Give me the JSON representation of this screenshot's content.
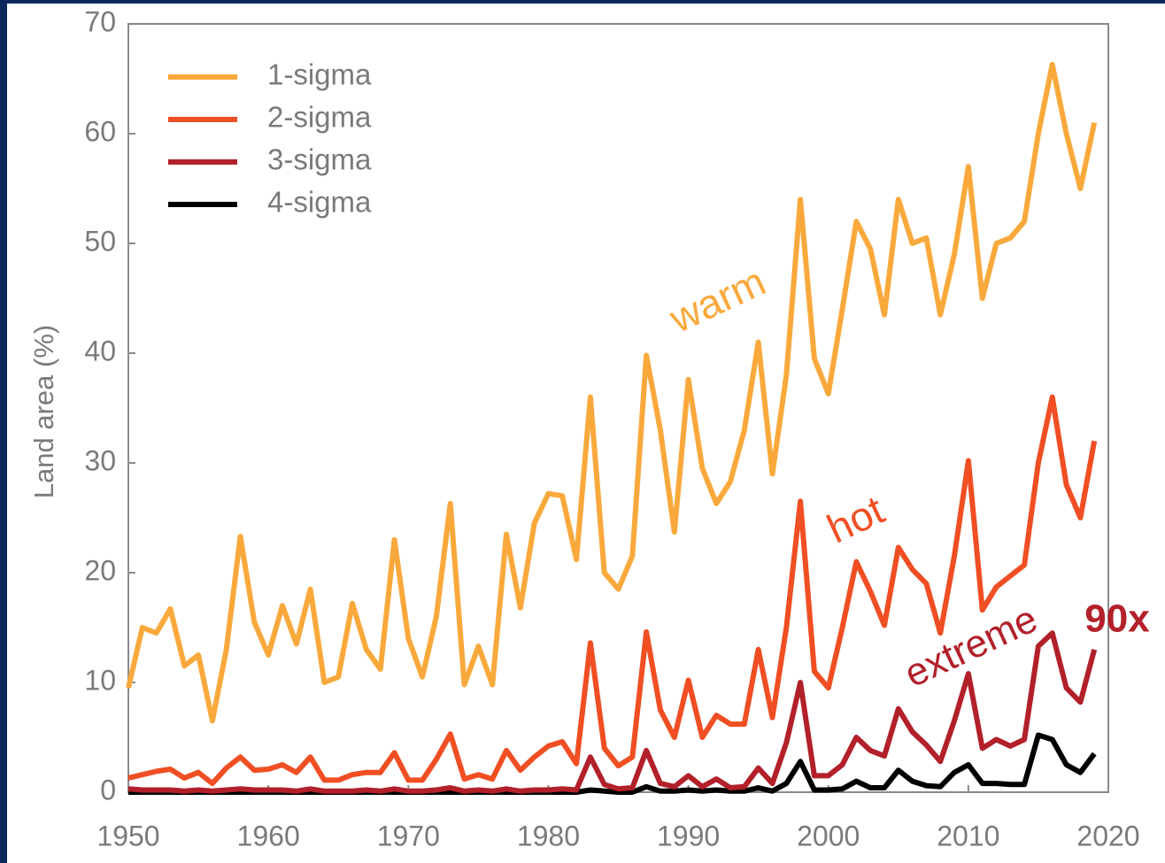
{
  "chart_data": {
    "type": "line",
    "y_label": "Land area (%)",
    "x": [
      1950,
      1951,
      1952,
      1953,
      1954,
      1955,
      1956,
      1957,
      1958,
      1959,
      1960,
      1961,
      1962,
      1963,
      1964,
      1965,
      1966,
      1967,
      1968,
      1969,
      1970,
      1971,
      1972,
      1973,
      1974,
      1975,
      1976,
      1977,
      1978,
      1979,
      1980,
      1981,
      1982,
      1983,
      1984,
      1985,
      1986,
      1987,
      1988,
      1989,
      1990,
      1991,
      1992,
      1993,
      1994,
      1995,
      1996,
      1997,
      1998,
      1999,
      2000,
      2001,
      2002,
      2003,
      2004,
      2005,
      2006,
      2007,
      2008,
      2009,
      2010,
      2011,
      2012,
      2013,
      2014,
      2015,
      2016,
      2017,
      2018,
      2019
    ],
    "series": [
      {
        "name": "1-sigma",
        "color": "#f9a93c",
        "values": [
          9.5,
          15,
          14.5,
          16.7,
          11.5,
          12.5,
          6.5,
          13,
          23.3,
          15.5,
          12.5,
          17,
          13.5,
          18.5,
          10,
          10.5,
          17.2,
          13,
          11.2,
          23,
          14,
          10.5,
          16,
          26.3,
          9.8,
          13.3,
          9.8,
          23.5,
          16.8,
          24.5,
          27.2,
          27,
          21.2,
          36,
          20,
          18.5,
          21.5,
          39.8,
          33,
          23.7,
          37.6,
          29.5,
          26.3,
          28.3,
          33,
          41,
          29,
          38,
          54,
          39.5,
          36.3,
          44,
          52,
          49.5,
          43.5,
          54,
          50,
          50.5,
          43.5,
          49,
          57,
          45,
          50,
          50.5,
          52,
          60,
          66.3,
          60,
          55,
          61
        ]
      },
      {
        "name": "2-sigma",
        "color": "#f04e23",
        "values": [
          1.3,
          1.6,
          1.9,
          2.1,
          1.3,
          1.8,
          0.8,
          2.2,
          3.2,
          2,
          2.1,
          2.5,
          1.8,
          3.2,
          1.1,
          1.1,
          1.6,
          1.8,
          1.8,
          3.6,
          1.1,
          1.1,
          3,
          5.3,
          1.2,
          1.6,
          1.2,
          3.8,
          2,
          3.2,
          4.2,
          4.6,
          2.6,
          13.6,
          4,
          2.4,
          3.2,
          14.6,
          7.5,
          5,
          10.2,
          5,
          7,
          6.2,
          6.2,
          13,
          6.8,
          15,
          26.5,
          11,
          9.5,
          15,
          21,
          18.3,
          15.2,
          22.3,
          20.3,
          19,
          14.5,
          21.5,
          30.2,
          16.6,
          18.7,
          19.7,
          20.7,
          30,
          36,
          28,
          25,
          32
        ]
      },
      {
        "name": "3-sigma",
        "color": "#b2202a",
        "values": [
          0.3,
          0.2,
          0.2,
          0.2,
          0.1,
          0.2,
          0.1,
          0.2,
          0.3,
          0.2,
          0.2,
          0.2,
          0.1,
          0.3,
          0.1,
          0.1,
          0.1,
          0.2,
          0.1,
          0.3,
          0.1,
          0.1,
          0.2,
          0.4,
          0.1,
          0.2,
          0.1,
          0.3,
          0.1,
          0.2,
          0.2,
          0.3,
          0.2,
          3.2,
          0.7,
          0.3,
          0.4,
          3.8,
          0.8,
          0.5,
          1.5,
          0.5,
          1.2,
          0.4,
          0.5,
          2.2,
          0.8,
          4.5,
          10,
          1.5,
          1.5,
          2.5,
          5,
          3.8,
          3.3,
          7.6,
          5.5,
          4.3,
          2.8,
          6.5,
          10.8,
          4,
          4.8,
          4.2,
          4.8,
          13.3,
          14.5,
          9.5,
          8.2,
          13
        ]
      },
      {
        "name": "4-sigma",
        "color": "#000000",
        "values": [
          0,
          0,
          0,
          0,
          0,
          0,
          0,
          0,
          0,
          0,
          0,
          0,
          0,
          0,
          0,
          0,
          0,
          0,
          0,
          0,
          0,
          0,
          0,
          0,
          0,
          0,
          0,
          0,
          0,
          0,
          0,
          0,
          0,
          0.2,
          0.1,
          0,
          0,
          0.5,
          0.1,
          0.1,
          0.2,
          0.1,
          0.2,
          0.1,
          0.1,
          0.4,
          0.1,
          0.8,
          2.8,
          0.2,
          0.2,
          0.3,
          1,
          0.4,
          0.4,
          2,
          1,
          0.6,
          0.5,
          1.8,
          2.5,
          0.8,
          0.8,
          0.7,
          0.7,
          5.2,
          4.8,
          2.5,
          1.8,
          3.5
        ]
      }
    ],
    "annotations": [
      {
        "text": "warm",
        "color": "#f9a93c"
      },
      {
        "text": "hot",
        "color": "#f04e23"
      },
      {
        "text": "extreme",
        "color": "#b2202a"
      },
      {
        "text": "90x",
        "color": "#b2202a"
      }
    ],
    "xlim": [
      1950,
      2020
    ],
    "xticks": [
      1950,
      1960,
      1970,
      1980,
      1990,
      2000,
      2010,
      2020
    ],
    "ylim": [
      0,
      70
    ],
    "yticks": [
      0,
      10,
      20,
      30,
      40,
      50,
      60,
      70
    ],
    "legend": "upper left"
  }
}
